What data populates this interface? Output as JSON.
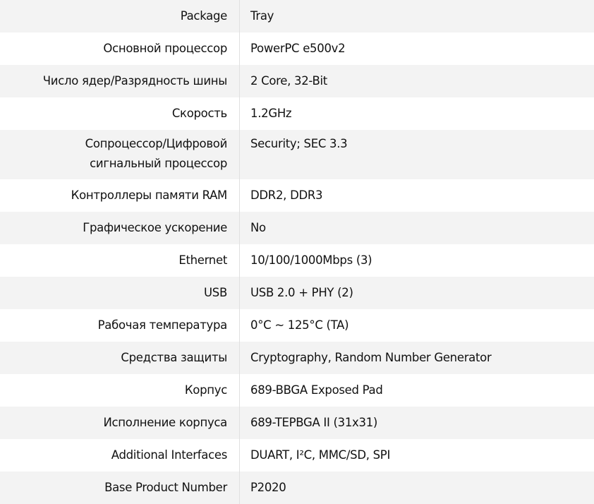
{
  "rows": [
    {
      "label": "Package",
      "value": "Tray"
    },
    {
      "label": "Основной процессор",
      "value": "PowerPC e500v2"
    },
    {
      "label": "Число ядер/Разрядность шины",
      "value": "2 Core, 32-Bit"
    },
    {
      "label": "Скорость",
      "value": "1.2GHz"
    },
    {
      "label": "Сопроцессор/Цифровой сигнальный процессор",
      "value": "Security; SEC 3.3"
    },
    {
      "label": "Контроллеры памяти RAM",
      "value": "DDR2, DDR3"
    },
    {
      "label": "Графическое ускорение",
      "value": "No"
    },
    {
      "label": "Ethernet",
      "value": "10/100/1000Mbps (3)"
    },
    {
      "label": "USB",
      "value": "USB 2.0 + PHY (2)"
    },
    {
      "label": "Рабочая температура",
      "value": "0°C ~ 125°C (TA)"
    },
    {
      "label": "Средства защиты",
      "value": "Cryptography, Random Number Generator"
    },
    {
      "label": "Корпус",
      "value": "689-BBGA Exposed Pad"
    },
    {
      "label": "Исполнение корпуса",
      "value": "689-TEPBGA II (31x31)"
    },
    {
      "label": "Additional Interfaces",
      "value": "DUART, I²C, MMC/SD, SPI"
    },
    {
      "label": "Base Product Number",
      "value": "P2020"
    }
  ]
}
